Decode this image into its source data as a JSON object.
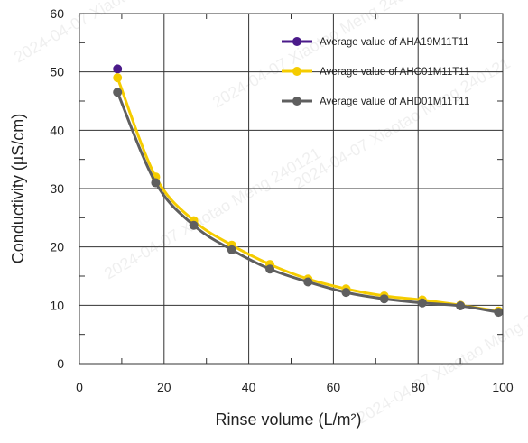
{
  "chart_data": {
    "type": "line",
    "xlabel": "Rinse volume (L/m²)",
    "ylabel": "Conductivity (µS/cm)",
    "xlim": [
      0,
      100
    ],
    "ylim": [
      0,
      60
    ],
    "xticks": [
      0,
      20,
      40,
      60,
      80,
      100
    ],
    "yticks": [
      0,
      10,
      20,
      30,
      40,
      50,
      60
    ],
    "grid": true,
    "legend_position": "top-right",
    "watermark": "2024-04-07 Xiaotao Meng 240121",
    "series": [
      {
        "name": "Average value of AHA19M11T11",
        "color": "#4a1a8a",
        "x": [
          9
        ],
        "y": [
          50.5
        ]
      },
      {
        "name": "Average value of AHC01M11T11",
        "color": "#f5cc00",
        "x": [
          9,
          18,
          27,
          36,
          45,
          54,
          63,
          72,
          81,
          90,
          99
        ],
        "y": [
          49,
          32,
          24.5,
          20.3,
          17,
          14.5,
          12.8,
          11.6,
          10.9,
          10,
          9
        ]
      },
      {
        "name": "Average value of AHD01M11T11",
        "color": "#5f5f5f",
        "x": [
          9,
          18,
          27,
          36,
          45,
          54,
          63,
          72,
          81,
          90,
          99
        ],
        "y": [
          46.5,
          31,
          23.7,
          19.5,
          16.2,
          14,
          12.2,
          11.1,
          10.4,
          9.9,
          8.8
        ]
      }
    ]
  }
}
